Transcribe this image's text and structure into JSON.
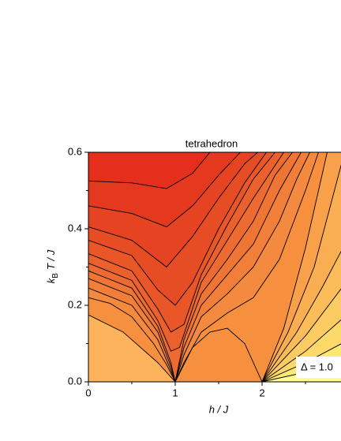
{
  "chart_data": {
    "type": "contour",
    "title": "tetrahedron",
    "x_label": "h / J",
    "y_label_parts": [
      "k",
      "B",
      "T / J"
    ],
    "annotation": "Δ = 1.0",
    "xlim": [
      0,
      3
    ],
    "ylim": [
      0,
      0.6
    ],
    "xticks": [
      0,
      1,
      2
    ],
    "yticks": [
      {
        "value": 0,
        "label": "0.0"
      },
      0.2,
      0.4,
      0.6
    ],
    "xminor": [
      0.5,
      1.5,
      2.5
    ],
    "yminor": [
      0.1,
      0.3,
      0.5
    ],
    "background_color": "#f6903f",
    "line_color": "#000000",
    "series": [
      {
        "fill": "below",
        "color": "#fdb35c",
        "x": [
          0,
          0.4,
          0.8,
          1
        ],
        "y": [
          0.175,
          0.13,
          0.05,
          0
        ]
      },
      {
        "fill": "none",
        "color": "#f6903f",
        "x": [
          1,
          1.2,
          1.4,
          1.6,
          1.8,
          2
        ],
        "y": [
          0,
          0.09,
          0.13,
          0.14,
          0.1,
          0
        ]
      },
      {
        "fill": "below",
        "color": "#f9a04b",
        "x": [
          2,
          2.25,
          2.5,
          2.75
        ],
        "y": [
          0,
          0.14,
          0.35,
          0.6
        ]
      },
      {
        "fill": "below",
        "color": "#faae52",
        "x": [
          2,
          2.3,
          2.6,
          2.95
        ],
        "y": [
          0,
          0.13,
          0.3,
          0.6
        ]
      },
      {
        "fill": "below",
        "color": "#fbbd5a",
        "x": [
          2,
          2.4,
          2.7,
          3
        ],
        "y": [
          0,
          0.13,
          0.25,
          0.38
        ]
      },
      {
        "fill": "below",
        "color": "#fccb62",
        "x": [
          2,
          2.5,
          3
        ],
        "y": [
          0,
          0.12,
          0.27
        ]
      },
      {
        "fill": "below",
        "color": "#fdd96a",
        "x": [
          2,
          2.5,
          3
        ],
        "y": [
          0,
          0.08,
          0.18
        ]
      },
      {
        "fill": "below",
        "color": "#fde874",
        "x": [
          2,
          2.5,
          3
        ],
        "y": [
          0,
          0.05,
          0.11
        ]
      },
      {
        "fill": "below",
        "color": "#ffff8c",
        "x": [
          2,
          3
        ],
        "y": [
          0,
          0.05
        ]
      },
      {
        "fill": "above",
        "color": "#f48a3f",
        "x": [
          0,
          0.25,
          0.5,
          0.75,
          0.9,
          1,
          1.1,
          1.3,
          1.6,
          1.9,
          2.2,
          2.5,
          2.65
        ],
        "y": [
          0.22,
          0.205,
          0.17,
          0.1,
          0.045,
          0,
          0.05,
          0.13,
          0.18,
          0.22,
          0.32,
          0.5,
          0.6
        ]
      },
      {
        "fill": "above",
        "color": "#f17f3a",
        "x": [
          0,
          0.5,
          0.8,
          0.95,
          1,
          1.1,
          1.3,
          1.6,
          1.9,
          2.2,
          2.4,
          2.55
        ],
        "y": [
          0.245,
          0.2,
          0.11,
          0.03,
          0,
          0.07,
          0.17,
          0.23,
          0.3,
          0.42,
          0.53,
          0.6
        ]
      },
      {
        "fill": "above",
        "color": "#ef7535",
        "x": [
          0,
          0.5,
          0.8,
          0.95,
          1,
          1.1,
          1.3,
          1.6,
          1.9,
          2.2,
          2.45
        ],
        "y": [
          0.27,
          0.225,
          0.13,
          0.04,
          0,
          0.09,
          0.2,
          0.28,
          0.36,
          0.5,
          0.6
        ]
      },
      {
        "fill": "above",
        "color": "#ed6b31",
        "x": [
          0,
          0.5,
          0.8,
          0.95,
          1,
          1.1,
          1.3,
          1.6,
          1.9,
          2.15,
          2.35
        ],
        "y": [
          0.29,
          0.245,
          0.145,
          0.05,
          0,
          0.11,
          0.23,
          0.32,
          0.42,
          0.54,
          0.6
        ]
      },
      {
        "fill": "above",
        "color": "#eb612d",
        "x": [
          0,
          0.5,
          0.8,
          0.95,
          1.05,
          1.3,
          1.6,
          1.9,
          2.25
        ],
        "y": [
          0.31,
          0.265,
          0.16,
          0.08,
          0.09,
          0.26,
          0.37,
          0.48,
          0.6
        ]
      },
      {
        "fill": "above",
        "color": "#e95729",
        "x": [
          0,
          0.5,
          0.8,
          0.95,
          1.1,
          1.3,
          1.6,
          1.9,
          2.15
        ],
        "y": [
          0.335,
          0.29,
          0.19,
          0.13,
          0.15,
          0.28,
          0.41,
          0.53,
          0.6
        ]
      },
      {
        "fill": "above",
        "color": "#e74d25",
        "x": [
          0,
          0.5,
          0.8,
          1,
          1.2,
          1.5,
          1.8,
          2.05
        ],
        "y": [
          0.37,
          0.33,
          0.24,
          0.2,
          0.26,
          0.4,
          0.52,
          0.6
        ]
      },
      {
        "fill": "above",
        "color": "#e64322",
        "x": [
          0,
          0.5,
          0.9,
          1.2,
          1.5,
          1.8,
          1.95
        ],
        "y": [
          0.405,
          0.37,
          0.3,
          0.38,
          0.48,
          0.57,
          0.6
        ]
      },
      {
        "fill": "above",
        "color": "#e5391f",
        "x": [
          0,
          0.5,
          0.9,
          1.2,
          1.5,
          1.75
        ],
        "y": [
          0.46,
          0.44,
          0.405,
          0.46,
          0.54,
          0.6
        ]
      },
      {
        "fill": "above",
        "color": "#e52e1c",
        "x": [
          0,
          0.5,
          0.9,
          1.2,
          1.4
        ],
        "y": [
          0.525,
          0.52,
          0.505,
          0.545,
          0.6
        ]
      }
    ]
  }
}
